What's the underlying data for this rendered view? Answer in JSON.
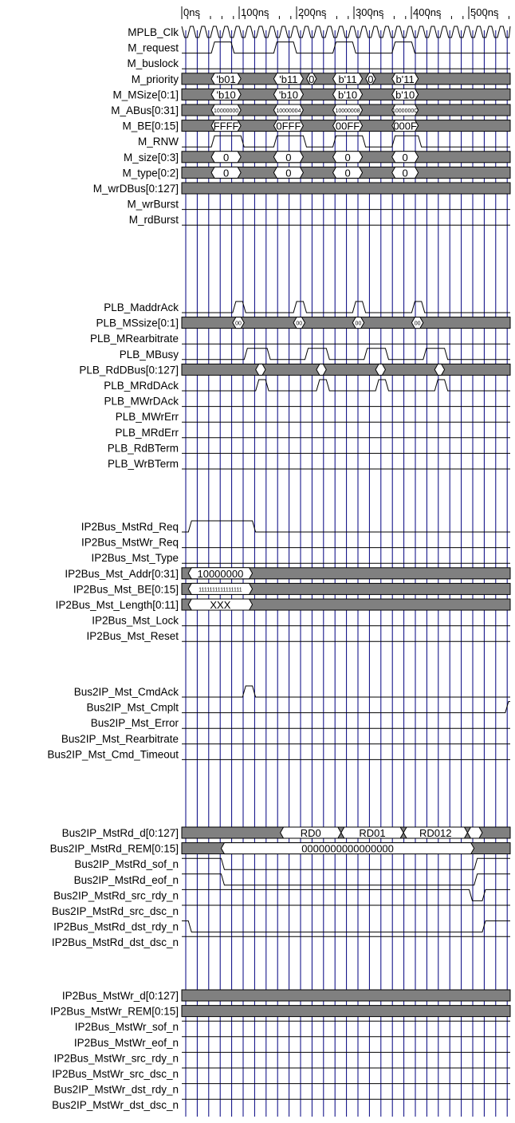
{
  "time_labels": [
    "0ns",
    "100ns",
    "200ns",
    "300ns",
    "400ns",
    "500ns"
  ],
  "colors": {
    "wire": "#000000",
    "grid": "#000080",
    "bus_fill": "#808080",
    "background": "#ffffff"
  },
  "group_a": {
    "signals": [
      {
        "name": "MPLB_Clk",
        "kind": "clock"
      },
      {
        "name": "M_request",
        "kind": "pulses",
        "pulses": [
          [
            0.09,
            0.15
          ],
          [
            0.28,
            0.34
          ],
          [
            0.46,
            0.52
          ],
          [
            0.64,
            0.7
          ]
        ]
      },
      {
        "name": "M_buslock",
        "kind": "low"
      },
      {
        "name": "M_priority",
        "kind": "bus",
        "segs": [
          [
            0.09,
            0.18,
            "'b01"
          ],
          [
            0.28,
            0.37,
            "'b11"
          ],
          [
            0.38,
            0.41,
            "0"
          ],
          [
            0.46,
            0.55,
            "b'11"
          ],
          [
            0.56,
            0.59,
            "0"
          ],
          [
            0.64,
            0.72,
            "b'11"
          ]
        ]
      },
      {
        "name": "M_MSize[0:1]",
        "kind": "bus",
        "segs": [
          [
            0.09,
            0.18,
            "'b10"
          ],
          [
            0.28,
            0.37,
            "'b10"
          ],
          [
            0.46,
            0.55,
            "b'10"
          ],
          [
            0.64,
            0.72,
            "b'10"
          ]
        ]
      },
      {
        "name": "M_ABus[0:31]",
        "kind": "bus",
        "small": true,
        "segs": [
          [
            0.09,
            0.18,
            "10000000"
          ],
          [
            0.28,
            0.37,
            "10000004"
          ],
          [
            0.46,
            0.55,
            "10000008"
          ],
          [
            0.64,
            0.72,
            "1000000C"
          ]
        ]
      },
      {
        "name": "M_BE[0:15]",
        "kind": "bus",
        "segs": [
          [
            0.09,
            0.18,
            "FFFF"
          ],
          [
            0.28,
            0.37,
            "0FFF"
          ],
          [
            0.46,
            0.55,
            "00FF"
          ],
          [
            0.64,
            0.72,
            "000F"
          ]
        ]
      },
      {
        "name": "M_RNW",
        "kind": "pulses",
        "pulses": [
          [
            0.09,
            0.18
          ],
          [
            0.28,
            0.37
          ],
          [
            0.46,
            0.55
          ],
          [
            0.64,
            0.72
          ]
        ]
      },
      {
        "name": "M_size[0:3]",
        "kind": "bus",
        "segs": [
          [
            0.09,
            0.18,
            "0"
          ],
          [
            0.28,
            0.37,
            "0"
          ],
          [
            0.46,
            0.55,
            "0"
          ],
          [
            0.64,
            0.72,
            "0"
          ]
        ]
      },
      {
        "name": "M_type[0:2]",
        "kind": "bus",
        "segs": [
          [
            0.09,
            0.18,
            "0"
          ],
          [
            0.28,
            0.37,
            "0"
          ],
          [
            0.46,
            0.55,
            "0"
          ],
          [
            0.64,
            0.72,
            "0"
          ]
        ]
      },
      {
        "name": "M_wrDBus[0:127]",
        "kind": "bus",
        "segs": []
      },
      {
        "name": "M_wrBurst",
        "kind": "low"
      },
      {
        "name": "M_rdBurst",
        "kind": "low"
      }
    ]
  },
  "group_b": {
    "signals": [
      {
        "name": "PLB_MaddrAck",
        "kind": "pulses",
        "pulses": [
          [
            0.155,
            0.185
          ],
          [
            0.34,
            0.37
          ],
          [
            0.52,
            0.55
          ],
          [
            0.7,
            0.73
          ]
        ]
      },
      {
        "name": "PLB_MSsize[0:1]",
        "kind": "bus",
        "small": true,
        "segs": [
          [
            0.155,
            0.19,
            "00"
          ],
          [
            0.34,
            0.375,
            "00"
          ],
          [
            0.52,
            0.555,
            "00"
          ],
          [
            0.7,
            0.735,
            "00"
          ]
        ]
      },
      {
        "name": "PLB_MRearbitrate",
        "kind": "low"
      },
      {
        "name": "PLB_MBusy",
        "kind": "pulses",
        "pulses": [
          [
            0.19,
            0.26
          ],
          [
            0.375,
            0.44
          ],
          [
            0.555,
            0.62
          ],
          [
            0.735,
            0.8
          ]
        ]
      },
      {
        "name": "PLB_RdDBus[0:127]",
        "kind": "bus",
        "segs": [
          [
            0.225,
            0.255,
            ""
          ],
          [
            0.41,
            0.44,
            ""
          ],
          [
            0.59,
            0.62,
            ""
          ],
          [
            0.77,
            0.8,
            ""
          ]
        ]
      },
      {
        "name": "PLB_MRdDAck",
        "kind": "pulses",
        "pulses": [
          [
            0.225,
            0.255
          ],
          [
            0.41,
            0.44
          ],
          [
            0.59,
            0.62
          ],
          [
            0.77,
            0.8
          ]
        ]
      },
      {
        "name": "PLB_MWrDAck",
        "kind": "low"
      },
      {
        "name": "PLB_MWrErr",
        "kind": "low"
      },
      {
        "name": "PLB_MRdErr",
        "kind": "low"
      },
      {
        "name": "PLB_RdBTerm",
        "kind": "low"
      },
      {
        "name": "PLB_WrBTerm",
        "kind": "low"
      }
    ]
  },
  "group_c": {
    "signals": [
      {
        "name": "IP2Bus_MstRd_Req",
        "kind": "pulses",
        "pulses": [
          [
            0.02,
            0.215
          ]
        ]
      },
      {
        "name": "IP2Bus_MstWr_Req",
        "kind": "low"
      },
      {
        "name": "IP2Bus_Mst_Type",
        "kind": "low"
      },
      {
        "name": "IP2Bus_Mst_Addr[0:31]",
        "kind": "bus",
        "segs": [
          [
            0.02,
            0.215,
            "10000000"
          ]
        ]
      },
      {
        "name": "IP2Bus_Mst_BE[0:15]",
        "kind": "bus",
        "small": true,
        "segs": [
          [
            0.02,
            0.215,
            "1111111111111111"
          ]
        ]
      },
      {
        "name": "IP2Bus_Mst_Length[0:11]",
        "kind": "bus",
        "segs": [
          [
            0.02,
            0.215,
            "XXX"
          ]
        ]
      },
      {
        "name": "IP2Bus_Mst_Lock",
        "kind": "low"
      },
      {
        "name": "IP2Bus_Mst_Reset",
        "kind": "low"
      }
    ]
  },
  "group_d": {
    "signals": [
      {
        "name": "Bus2IP_Mst_CmdAck",
        "kind": "pulses",
        "pulses": [
          [
            0.185,
            0.215
          ]
        ]
      },
      {
        "name": "Bus2IP_Mst_Cmplt",
        "kind": "rise_end",
        "at": 0.985
      },
      {
        "name": "Bus2IP_Mst_Error",
        "kind": "low"
      },
      {
        "name": "Bus2IP_Mst_Rearbitrate",
        "kind": "low"
      },
      {
        "name": "Bus2IP_Mst_Cmd_Timeout",
        "kind": "low"
      }
    ]
  },
  "group_e": {
    "signals": [
      {
        "name": "Bus2IP_MstRd_d[0:127]",
        "kind": "bus",
        "segs": [
          [
            0.3,
            0.485,
            "RD0"
          ],
          [
            0.485,
            0.675,
            "RD01"
          ],
          [
            0.675,
            0.87,
            "RD012"
          ],
          [
            0.87,
            0.915,
            ""
          ]
        ]
      },
      {
        "name": "Bus2IP_MstRd_REM[0:15]",
        "kind": "bus",
        "segs": [
          [
            0.12,
            0.89,
            "0000000000000000"
          ]
        ]
      },
      {
        "name": "Bus2IP_MstRd_sof_n",
        "kind": "low_pulse",
        "pulses": [
          [
            0.12,
            0.89
          ]
        ]
      },
      {
        "name": "Bus2IP_MstRd_eof_n",
        "kind": "low_pulse",
        "pulses": [
          [
            0.12,
            0.89
          ]
        ]
      },
      {
        "name": "Bus2IP_MstRd_src_rdy_n",
        "kind": "low_pulse",
        "pulses": [
          [
            0.875,
            0.915
          ]
        ]
      },
      {
        "name": "Bus2IP_MstRd_src_dsc_n",
        "kind": "high"
      },
      {
        "name": "IP2Bus_MstRd_dst_rdy_n",
        "kind": "low_pulse",
        "pulses": [
          [
            0.02,
            0.915
          ]
        ]
      },
      {
        "name": "IP2Bus_MstRd_dst_dsc_n",
        "kind": "high"
      }
    ]
  },
  "group_f": {
    "signals": [
      {
        "name": "IP2Bus_MstWr_d[0:127]",
        "kind": "bus",
        "segs": []
      },
      {
        "name": "IP2Bus_MstWr_REM[0:15]",
        "kind": "bus",
        "segs": []
      },
      {
        "name": "IP2Bus_MstWr_sof_n",
        "kind": "high"
      },
      {
        "name": "IP2Bus_MstWr_eof_n",
        "kind": "high"
      },
      {
        "name": "IP2Bus_MstWr_src_rdy_n",
        "kind": "high"
      },
      {
        "name": "IP2Bus_MstWr_src_dsc_n",
        "kind": "high"
      },
      {
        "name": "Bus2IP_MstWr_dst_rdy_n",
        "kind": "high"
      },
      {
        "name": "Bus2IP_MstWr_dst_dsc_n",
        "kind": "high"
      }
    ]
  }
}
